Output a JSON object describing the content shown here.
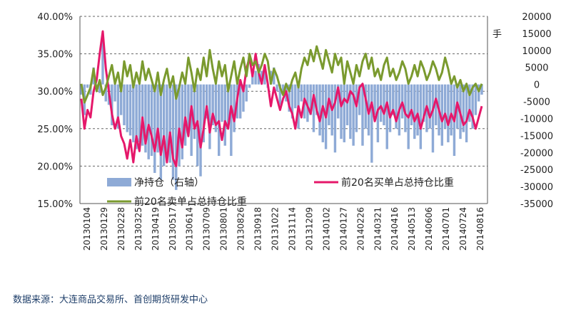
{
  "chart_data": {
    "type": "line",
    "unit_label": "手",
    "left_axis": {
      "ticks": [
        "40.00%",
        "35.00%",
        "30.00%",
        "25.00%",
        "20.00%",
        "15.00%"
      ],
      "range": [
        15,
        40
      ]
    },
    "right_axis": {
      "ticks": [
        "20000",
        "15000",
        "10000",
        "5000",
        "0",
        "-5000",
        "-10000",
        "-15000",
        "-20000",
        "-25000",
        "-30000",
        "-35000"
      ],
      "range": [
        -35000,
        20000
      ]
    },
    "x_ticks": [
      "20130104",
      "20130129",
      "20130228",
      "20130325",
      "20130419",
      "20130517",
      "20130614",
      "20130709",
      "20130801",
      "20130826",
      "20130918",
      "20131022",
      "20131114",
      "20131209",
      "20140102",
      "20140127",
      "20140226",
      "20140321",
      "20140416",
      "20140513",
      "20140606",
      "20140701",
      "20140724",
      "20140816"
    ],
    "series": [
      {
        "name": "净持仓（右轴）",
        "type": "bar",
        "axis": "right",
        "color": "#8eaad6",
        "values": [
          -3000,
          -9000,
          -1000,
          -3000,
          5000,
          -2000,
          -2500,
          13000,
          -5000,
          -6000,
          -12000,
          -5000,
          -13000,
          -9000,
          -12000,
          -14000,
          -15000,
          -17000,
          -19000,
          -17000,
          -18000,
          -20000,
          -22000,
          -21000,
          -26000,
          -20000,
          -28000,
          -24000,
          -20000,
          -23000,
          -28000,
          -31000,
          -24000,
          -22000,
          -18000,
          -14000,
          -21000,
          -16000,
          -24000,
          -27000,
          -17000,
          -10000,
          -19000,
          -12000,
          -14000,
          -21000,
          -11000,
          -18000,
          -13000,
          -21000,
          -14000,
          -10000,
          -10000,
          -8000,
          -5000,
          -1000,
          3000,
          4000,
          6000,
          4000,
          5000,
          -1000,
          4000,
          5000,
          -2000,
          -6000,
          -3000,
          -5000,
          -8000,
          -10000,
          -7000,
          -13000,
          -5000,
          -10000,
          -11000,
          -9000,
          -14000,
          -9000,
          -15000,
          -17000,
          -19000,
          -12000,
          -15000,
          -20000,
          -10000,
          -16000,
          -17000,
          -12000,
          -16000,
          -18000,
          -14000,
          -9000,
          -18000,
          -13000,
          -15000,
          -23000,
          -9000,
          -17000,
          -11000,
          -12000,
          -19000,
          -14000,
          -9000,
          -13000,
          -15000,
          -10000,
          -14000,
          -19000,
          -12000,
          -16000,
          -15000,
          -19000,
          -11000,
          -14000,
          -13000,
          -20000,
          -12000,
          -15000,
          -18000,
          -13000,
          -17000,
          -15000,
          -21000,
          -13000,
          -16000,
          -14000,
          -17000,
          -11000,
          -13000,
          -9000,
          -5000,
          -3000
        ]
      },
      {
        "name": "前20名买单占总持仓比重",
        "type": "line",
        "axis": "left",
        "color": "#e5186a",
        "values": [
          29.0,
          25.0,
          27.5,
          26.5,
          30.0,
          31.5,
          35.0,
          38.0,
          33.0,
          30.0,
          27.0,
          25.0,
          26.5,
          24.0,
          23.0,
          21.0,
          23.5,
          20.5,
          24.0,
          22.0,
          26.5,
          23.0,
          25.5,
          24.0,
          22.0,
          25.0,
          21.5,
          24.0,
          20.5,
          24.5,
          21.0,
          20.0,
          25.0,
          22.5,
          26.5,
          24.0,
          28.0,
          25.0,
          26.0,
          22.5,
          25.0,
          28.0,
          24.5,
          27.0,
          25.5,
          26.0,
          23.5,
          26.0,
          25.0,
          28.0,
          26.0,
          29.0,
          31.5,
          30.0,
          33.0,
          34.5,
          32.0,
          35.0,
          32.5,
          31.0,
          33.5,
          31.0,
          28.0,
          30.5,
          29.0,
          27.5,
          29.0,
          30.0,
          28.0,
          27.0,
          25.0,
          28.0,
          26.5,
          29.0,
          28.0,
          27.0,
          29.5,
          27.5,
          26.0,
          28.0,
          26.5,
          29.0,
          27.5,
          28.5,
          30.5,
          28.0,
          29.0,
          28.5,
          30.0,
          29.5,
          28.0,
          30.5,
          31.0,
          29.0,
          27.0,
          28.5,
          26.0,
          27.5,
          28.0,
          27.0,
          28.5,
          26.5,
          27.5,
          26.0,
          27.5,
          28.5,
          27.0,
          26.5,
          27.5,
          26.0,
          27.0,
          25.0,
          26.5,
          28.0,
          26.5,
          27.5,
          29.0,
          27.5,
          26.0,
          27.0,
          25.5,
          27.0,
          26.0,
          28.5,
          27.0,
          25.5,
          26.0,
          27.5,
          26.5,
          25.0,
          26.5,
          28.0
        ]
      },
      {
        "name": "前20名卖单占总持仓比重",
        "type": "line",
        "axis": "left",
        "color": "#7a9a2e",
        "values": [
          31.0,
          28.5,
          29.5,
          30.5,
          33.0,
          30.0,
          31.5,
          29.5,
          30.5,
          32.0,
          33.5,
          31.0,
          32.5,
          30.0,
          34.0,
          32.0,
          33.5,
          30.5,
          32.5,
          31.0,
          34.0,
          31.5,
          33.0,
          31.5,
          30.0,
          32.5,
          29.5,
          31.5,
          33.0,
          30.5,
          32.0,
          29.0,
          30.5,
          32.5,
          31.0,
          34.5,
          32.5,
          30.0,
          33.0,
          31.5,
          34.5,
          32.0,
          35.5,
          33.0,
          31.0,
          34.0,
          32.0,
          33.5,
          30.0,
          32.0,
          34.0,
          31.0,
          33.0,
          34.5,
          32.0,
          35.0,
          33.5,
          34.0,
          32.5,
          33.5,
          35.0,
          34.0,
          31.0,
          33.0,
          32.0,
          30.5,
          29.5,
          31.0,
          30.0,
          31.5,
          32.5,
          30.5,
          33.0,
          34.5,
          33.5,
          35.5,
          34.0,
          36.0,
          34.5,
          33.0,
          35.5,
          34.0,
          32.5,
          35.0,
          33.5,
          34.5,
          31.0,
          34.0,
          32.5,
          31.0,
          33.5,
          32.0,
          34.0,
          35.0,
          33.0,
          34.5,
          32.0,
          33.0,
          31.5,
          33.5,
          34.5,
          32.0,
          33.0,
          31.5,
          32.5,
          34.0,
          33.0,
          31.0,
          32.0,
          33.5,
          32.0,
          34.0,
          33.0,
          31.5,
          32.5,
          34.0,
          33.0,
          31.5,
          32.5,
          34.5,
          33.0,
          31.0,
          32.0,
          30.5,
          31.5,
          30.0,
          31.0,
          29.5,
          30.5,
          31.0,
          30.0,
          31.0
        ]
      }
    ],
    "legend_placement": "bottom-inside",
    "grid": true
  },
  "source_text": "数据来源：大连商品交易所、首创期货研发中心"
}
